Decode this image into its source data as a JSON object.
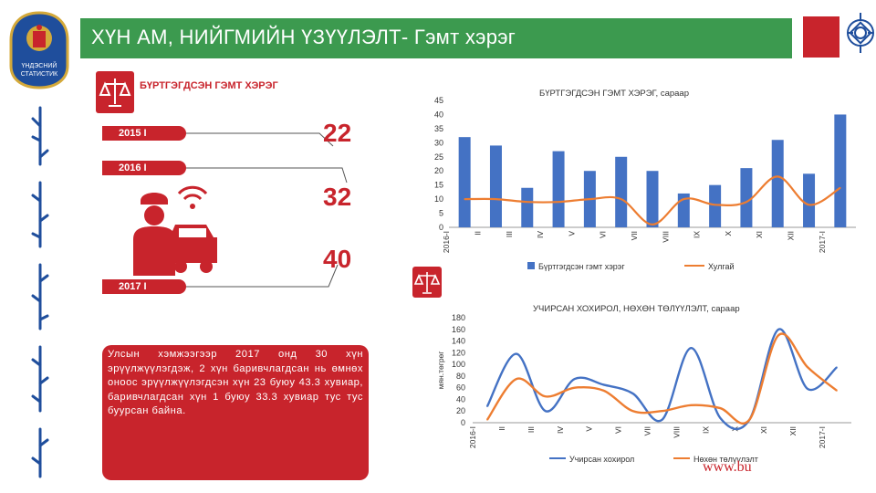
{
  "slide": {
    "title": "ХҮН АМ, НИЙГМИЙН ҮЗҮҮЛЭЛТ- Гэмт хэрэг",
    "logo_text": "ҮНДЭСНИЙ СТАТИСТИК",
    "registered_label": "БҮРТГЭГДСЭН ГЭМТ ХЭРЭГ",
    "years": [
      {
        "label": "2015 I",
        "value": "22"
      },
      {
        "label": "2016 I",
        "value": "32"
      },
      {
        "label": "2017 I",
        "value": "40"
      }
    ],
    "note": "Улсын хэмжээгээр 2017 онд 30 хүн эрүүлжүүлэгдэж, 2 хүн баривчлагдсан нь өмнөх оноос эрүүлжүүлэгдсэн хүн 23 буюу 43.3 хувиар, баривчлагдсан хүн 1 буюу 33.3 хувиар тус тус буурсан байна.",
    "watermark": "www.bu",
    "colors": {
      "title_bar": "#3c9a4f",
      "accent_red": "#c8242c",
      "bar_blue": "#4472c4",
      "line_orange": "#ed7d31"
    },
    "icons": [
      "mongolia-emblem-icon",
      "scales-of-justice-icon",
      "police-car-icon",
      "endless-knot-icon"
    ]
  },
  "chart_data": [
    {
      "type": "bar",
      "title": "БҮРТГЭГДСЭН ГЭМТ ХЭРЭГ, сараар",
      "categories": [
        "2016-I",
        "II",
        "III",
        "IV",
        "V",
        "VI",
        "VII",
        "VIII",
        "IX",
        "X",
        "XI",
        "XII",
        "2017-I"
      ],
      "series": [
        {
          "name": "Бүртгэгдсэн гэмт хэрэг",
          "type": "bar",
          "color": "#4472c4",
          "values": [
            32,
            29,
            14,
            27,
            20,
            25,
            20,
            12,
            15,
            21,
            31,
            19,
            40
          ]
        },
        {
          "name": "Хулгай",
          "type": "line",
          "color": "#ed7d31",
          "values": [
            10,
            10,
            9,
            9,
            10,
            10,
            1,
            10,
            8,
            9,
            18,
            8,
            14
          ]
        }
      ],
      "ylim": [
        0,
        45
      ],
      "yticks": [
        0,
        5,
        10,
        15,
        20,
        25,
        30,
        35,
        40,
        45
      ],
      "legend": "bottom"
    },
    {
      "type": "line",
      "title": "УЧИРСАН ХОХИРОЛ, НӨХӨН ТӨЛҮҮЛЭЛТ, сараар",
      "ylabel": "мян.төгрөг",
      "categories": [
        "2016-I",
        "II",
        "III",
        "IV",
        "V",
        "VI",
        "VII",
        "VIII",
        "IX",
        "X",
        "XI",
        "XII",
        "2017-I"
      ],
      "series": [
        {
          "name": "Учирсан хохирол",
          "color": "#4472c4",
          "values": [
            28,
            118,
            20,
            75,
            65,
            50,
            5,
            128,
            8,
            5,
            160,
            58,
            95
          ]
        },
        {
          "name": "Нөхөн төлүүлэлт",
          "color": "#ed7d31",
          "values": [
            5,
            75,
            45,
            60,
            55,
            20,
            20,
            30,
            25,
            5,
            150,
            95,
            55
          ]
        }
      ],
      "ylim": [
        0,
        180
      ],
      "yticks": [
        0,
        20,
        40,
        60,
        80,
        100,
        120,
        140,
        160,
        180
      ],
      "legend": "bottom"
    }
  ]
}
